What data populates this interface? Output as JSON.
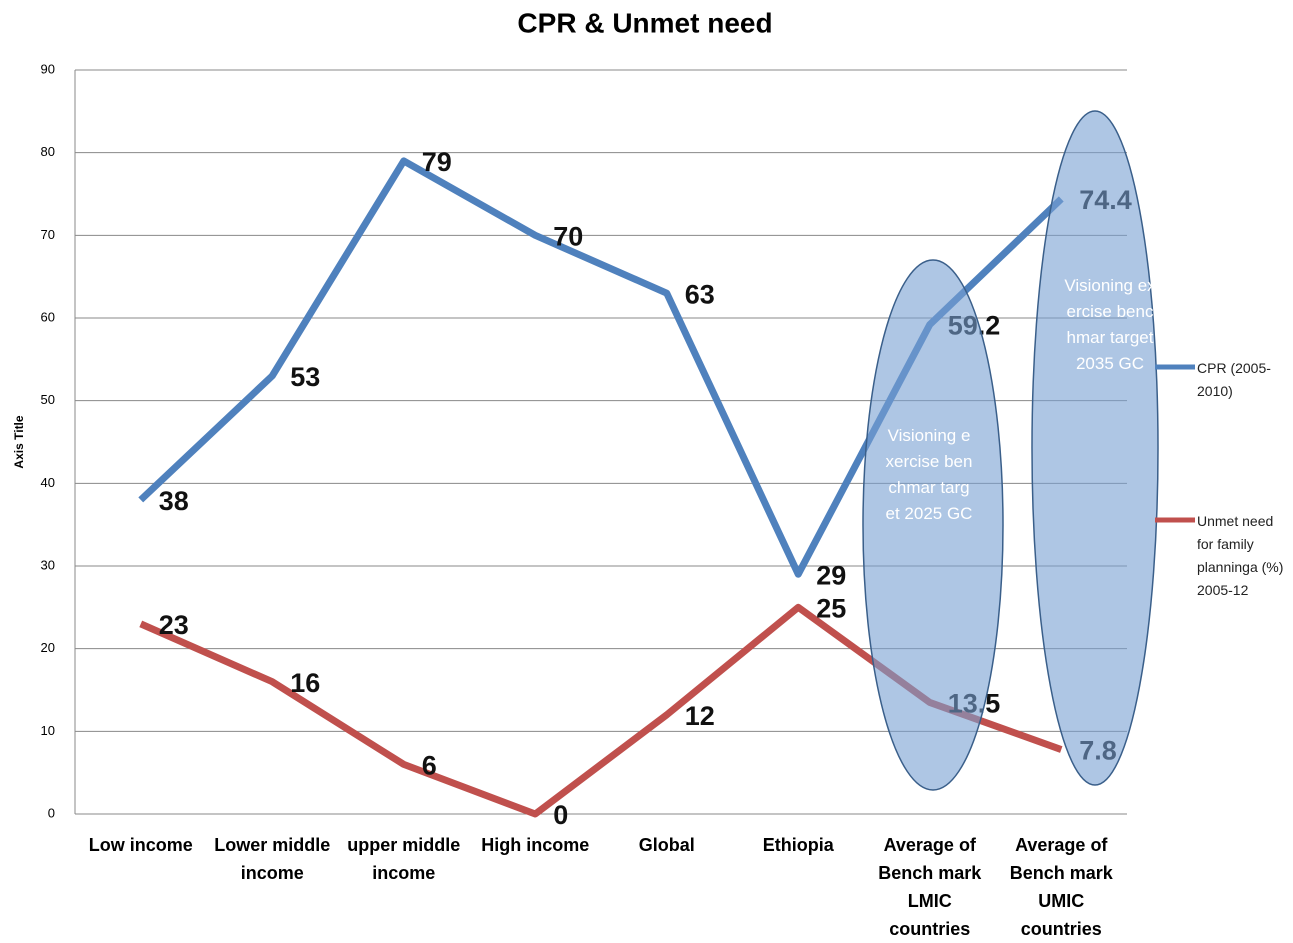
{
  "chart_data": {
    "type": "line",
    "title": "CPR & Unmet need",
    "y_axis_label": "Axis Title",
    "categories": [
      "Low income",
      "Lower middle income",
      "upper middle income",
      "High income",
      "Global",
      "Ethiopia",
      "Average of Bench mark LMIC countries",
      "Average of Bench mark UMIC countries"
    ],
    "series": [
      {
        "name": "CPR (2005-2010)",
        "color": "#4f81bd",
        "values": [
          38,
          53,
          79,
          70,
          63,
          29,
          59.2,
          74.4
        ]
      },
      {
        "name": "Unmet need for family planninga (%) 2005-12",
        "color": "#c0504d",
        "values": [
          23,
          16,
          6,
          0,
          12,
          25,
          13.5,
          7.8
        ]
      }
    ],
    "annotations": [
      "Visioning exercise benchmar target 2025 GC",
      "Visioning exercise benchmar target 2035 GC"
    ],
    "ylim": [
      0,
      90
    ],
    "yticks": [
      0,
      10,
      20,
      30,
      40,
      50,
      60,
      70,
      80,
      90
    ],
    "grid": true,
    "legend": "right"
  }
}
